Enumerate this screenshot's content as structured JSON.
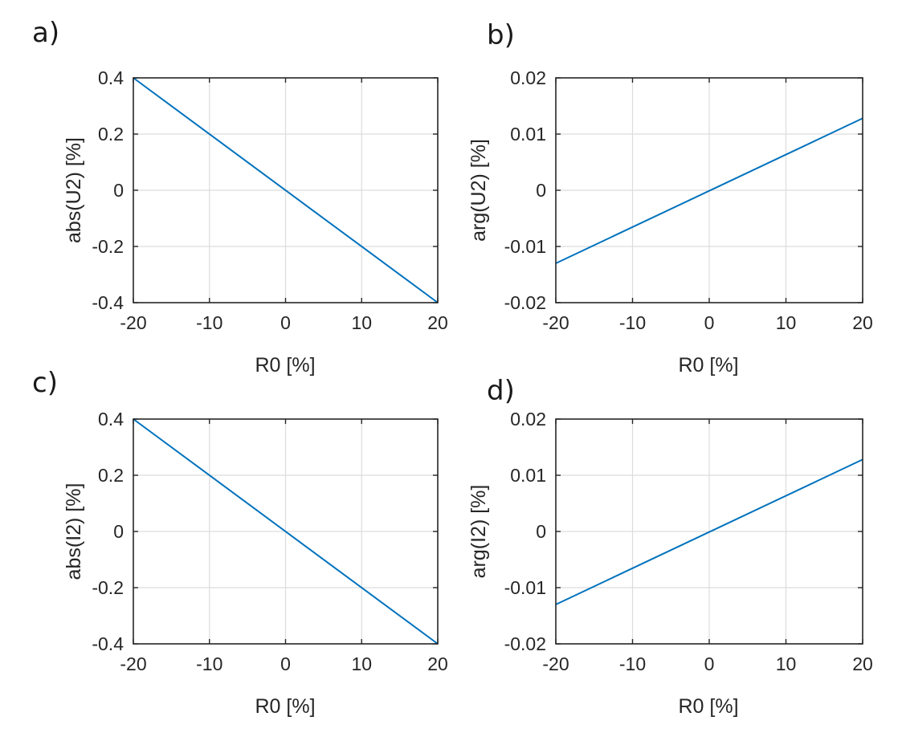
{
  "figure": {
    "series_color": "#0072BD"
  },
  "chart_data": [
    {
      "type": "line",
      "panel": "a)",
      "xlabel": "R0 [%]",
      "ylabel": "abs(U2) [%]",
      "xlim": [
        -20,
        20
      ],
      "ylim": [
        -0.4,
        0.4
      ],
      "xticks": [
        -20,
        -10,
        0,
        10,
        20
      ],
      "xtick_labels": [
        "-20",
        "-10",
        "0",
        "10",
        "20"
      ],
      "yticks": [
        -0.4,
        -0.2,
        0,
        0.2,
        0.4
      ],
      "ytick_labels": [
        "-0.4",
        "-0.2",
        "0",
        "0.2",
        "0.4"
      ],
      "grid": true,
      "series": [
        {
          "name": "abs(U2)",
          "x": [
            -20,
            20
          ],
          "y": [
            0.4,
            -0.4
          ]
        }
      ]
    },
    {
      "type": "line",
      "panel": "b)",
      "xlabel": "R0 [%]",
      "ylabel": "arg(U2) [%]",
      "xlim": [
        -20,
        20
      ],
      "ylim": [
        -0.02,
        0.02
      ],
      "xticks": [
        -20,
        -10,
        0,
        10,
        20
      ],
      "xtick_labels": [
        "-20",
        "-10",
        "0",
        "10",
        "20"
      ],
      "yticks": [
        -0.02,
        -0.01,
        0,
        0.01,
        0.02
      ],
      "ytick_labels": [
        "-0.02",
        "-0.01",
        "0",
        "0.01",
        "0.02"
      ],
      "grid": true,
      "series": [
        {
          "name": "arg(U2)",
          "x": [
            -20,
            20
          ],
          "y": [
            -0.013,
            0.0128
          ]
        }
      ]
    },
    {
      "type": "line",
      "panel": "c)",
      "xlabel": "R0 [%]",
      "ylabel": "abs(I2) [%]",
      "xlim": [
        -20,
        20
      ],
      "ylim": [
        -0.4,
        0.4
      ],
      "xticks": [
        -20,
        -10,
        0,
        10,
        20
      ],
      "xtick_labels": [
        "-20",
        "-10",
        "0",
        "10",
        "20"
      ],
      "yticks": [
        -0.4,
        -0.2,
        0,
        0.2,
        0.4
      ],
      "ytick_labels": [
        "-0.4",
        "-0.2",
        "0",
        "0.2",
        "0.4"
      ],
      "grid": true,
      "series": [
        {
          "name": "abs(I2)",
          "x": [
            -20,
            20
          ],
          "y": [
            0.4,
            -0.4
          ]
        }
      ]
    },
    {
      "type": "line",
      "panel": "d)",
      "xlabel": "R0 [%]",
      "ylabel": "arg(I2) [%]",
      "xlim": [
        -20,
        20
      ],
      "ylim": [
        -0.02,
        0.02
      ],
      "xticks": [
        -20,
        -10,
        0,
        10,
        20
      ],
      "xtick_labels": [
        "-20",
        "-10",
        "0",
        "10",
        "20"
      ],
      "yticks": [
        -0.02,
        -0.01,
        0,
        0.01,
        0.02
      ],
      "ytick_labels": [
        "-0.02",
        "-0.01",
        "0",
        "0.01",
        "0.02"
      ],
      "grid": true,
      "series": [
        {
          "name": "arg(I2)",
          "x": [
            -20,
            20
          ],
          "y": [
            -0.013,
            0.0128
          ]
        }
      ]
    }
  ]
}
